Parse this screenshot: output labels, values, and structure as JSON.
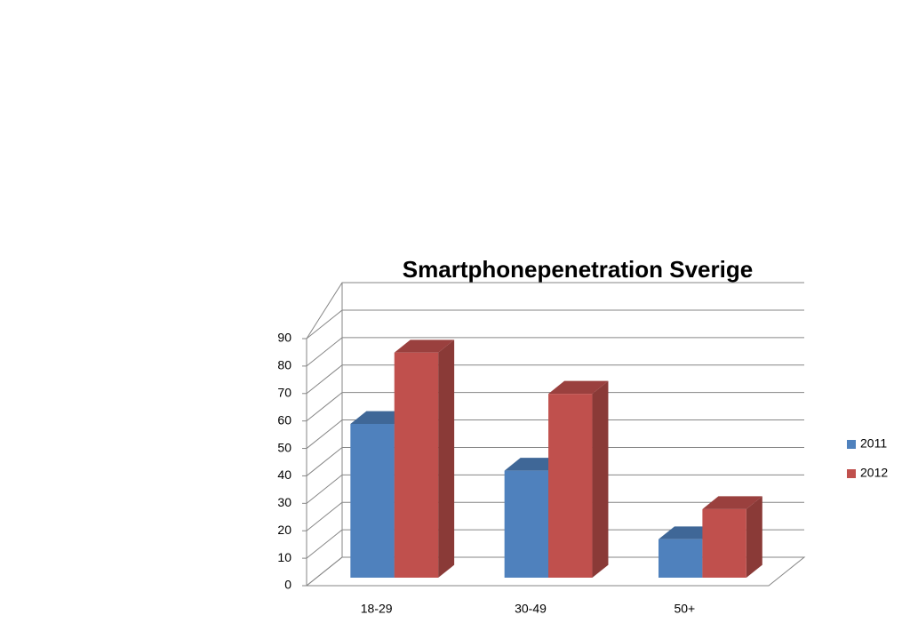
{
  "chart_data": {
    "type": "bar3d",
    "title": "Smartphonepenetration Sverige",
    "categories": [
      "18-29",
      "30-49",
      "50+"
    ],
    "series": [
      {
        "name": "2011",
        "color": "#4f81bd",
        "values": [
          56,
          39,
          14
        ]
      },
      {
        "name": "2012",
        "color": "#c0504d",
        "values": [
          82,
          67,
          25
        ]
      }
    ],
    "ylim": [
      0,
      90
    ],
    "yticks": [
      0,
      10,
      20,
      30,
      40,
      50,
      60,
      70,
      80,
      90
    ],
    "grid": true,
    "legend": "right"
  }
}
